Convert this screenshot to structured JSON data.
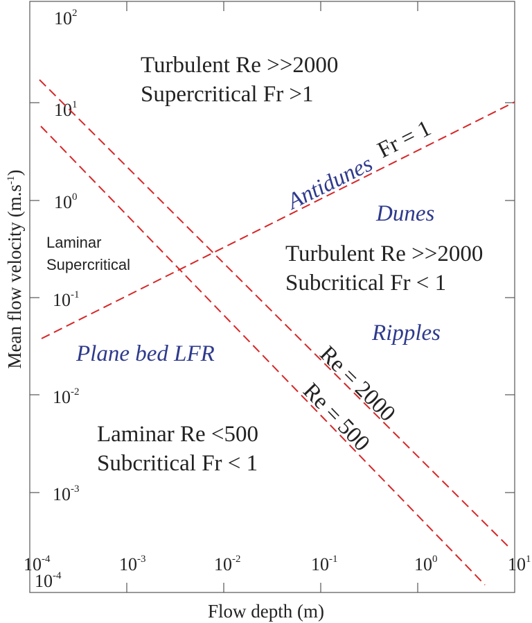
{
  "diagram": {
    "xlabel": "Flow depth (m)",
    "ylabel": "Mean flow velocity (m.s",
    "ylabel_sup": "-1",
    "ylabel_close": ")",
    "x_ticks": [
      {
        "base": "10",
        "exp": "-4"
      },
      {
        "base": "10",
        "exp": "-3"
      },
      {
        "base": "10",
        "exp": "-2"
      },
      {
        "base": "10",
        "exp": "-1"
      },
      {
        "base": "10",
        "exp": "0"
      },
      {
        "base": "10",
        "exp": "1"
      }
    ],
    "x_origin_label": {
      "base": "10",
      "exp": "-4"
    },
    "y_ticks": [
      {
        "base": "10",
        "exp": "2"
      },
      {
        "base": "10",
        "exp": "1"
      },
      {
        "base": "10",
        "exp": "0"
      },
      {
        "base": "10",
        "exp": "-1"
      },
      {
        "base": "10",
        "exp": "-2"
      },
      {
        "base": "10",
        "exp": "-3"
      }
    ],
    "regions": {
      "turbulent_super_1": "Turbulent Re >>2000",
      "turbulent_super_2": "Supercritical Fr >1",
      "turbulent_sub_1": "Turbulent Re >>2000",
      "turbulent_sub_2": "Subcritical Fr < 1",
      "laminar_sub_1": "Laminar Re <500",
      "laminar_sub_2": "Subcritical Fr < 1",
      "laminar_super_1": "Laminar",
      "laminar_super_2": "Supercritical"
    },
    "bedforms": {
      "antidunes": "Antidunes",
      "dunes": "Dunes",
      "ripples": "Ripples",
      "plane_bed": "Plane bed LFR"
    },
    "boundary_labels": {
      "froude": "Fr = 1",
      "re2000": "Re = 2000",
      "re500": "Re = 500"
    },
    "line_color": "#d62728",
    "bedform_color": "#2e3a8c"
  }
}
